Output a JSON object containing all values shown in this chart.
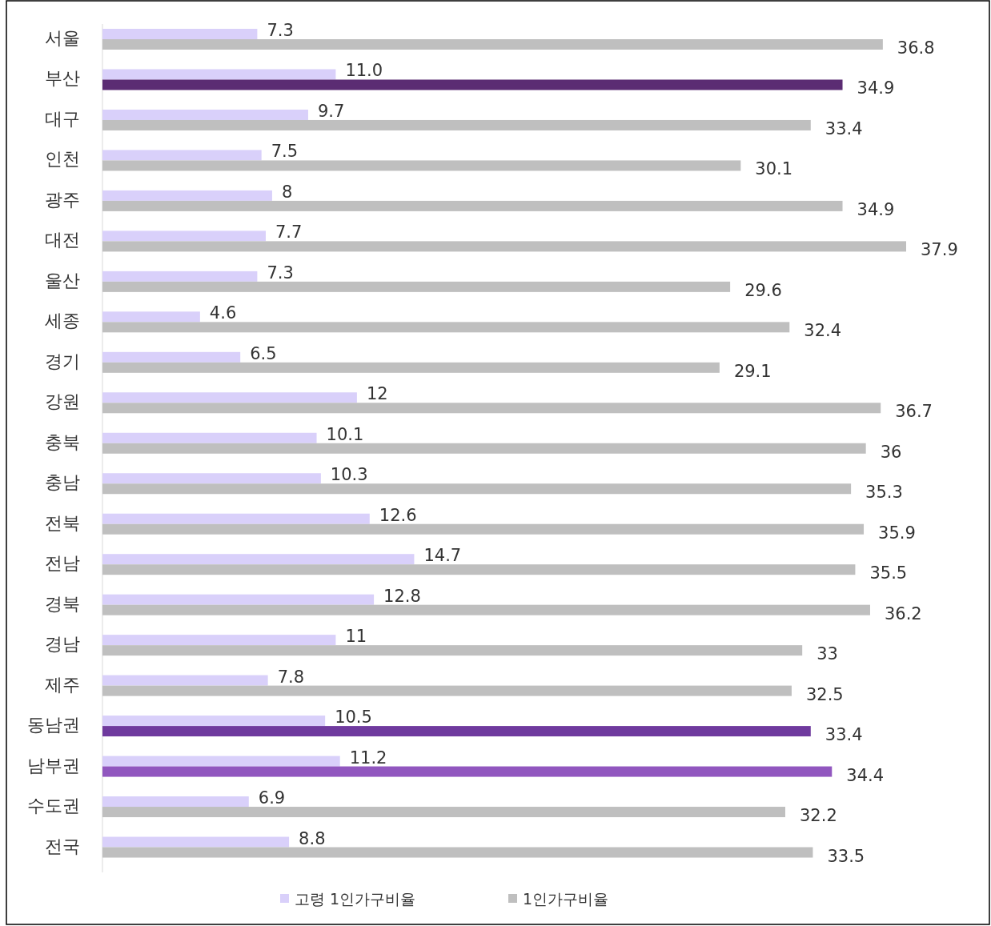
{
  "chart_data": {
    "type": "bar",
    "orientation": "horizontal",
    "legend": "bottom",
    "categories": [
      "서울",
      "부산",
      "대구",
      "인천",
      "광주",
      "대전",
      "울산",
      "세종",
      "경기",
      "강원",
      "충북",
      "충남",
      "전북",
      "전남",
      "경북",
      "경남",
      "제주",
      "동남권",
      "남부권",
      "수도권",
      "전국"
    ],
    "series": [
      {
        "name": "고령 1인가구비율",
        "color": "#d9d0fa",
        "values": [
          7.3,
          11.0,
          9.7,
          7.5,
          8,
          7.7,
          7.3,
          4.6,
          6.5,
          12,
          10.1,
          10.3,
          12.6,
          14.7,
          12.8,
          11,
          7.8,
          10.5,
          11.2,
          6.9,
          8.8
        ],
        "value_labels": [
          "7.3",
          "11.0",
          "9.7",
          "7.5",
          "8",
          "7.7",
          "7.3",
          "4.6",
          "6.5",
          "12",
          "10.1",
          "10.3",
          "12.6",
          "14.7",
          "12.8",
          "11",
          "7.8",
          "10.5",
          "11.2",
          "6.9",
          "8.8"
        ]
      },
      {
        "name": "1인가구비율",
        "color": "#bfbfbf",
        "colors": [
          "#bfbfbf",
          "#5b2c73",
          "#bfbfbf",
          "#bfbfbf",
          "#bfbfbf",
          "#bfbfbf",
          "#bfbfbf",
          "#bfbfbf",
          "#bfbfbf",
          "#bfbfbf",
          "#bfbfbf",
          "#bfbfbf",
          "#bfbfbf",
          "#bfbfbf",
          "#bfbfbf",
          "#bfbfbf",
          "#bfbfbf",
          "#6f3a9e",
          "#9157bf",
          "#bfbfbf",
          "#bfbfbf"
        ],
        "values": [
          36.8,
          34.9,
          33.4,
          30.1,
          34.9,
          37.9,
          29.6,
          32.4,
          29.1,
          36.7,
          36,
          35.3,
          35.9,
          35.5,
          36.2,
          33,
          32.5,
          33.4,
          34.4,
          32.2,
          33.5
        ],
        "value_labels": [
          "36.8",
          "34.9",
          "33.4",
          "30.1",
          "34.9",
          "37.9",
          "29.6",
          "32.4",
          "29.1",
          "36.7",
          "36",
          "35.3",
          "35.9",
          "35.5",
          "36.2",
          "33",
          "32.5",
          "33.4",
          "34.4",
          "32.2",
          "33.5"
        ]
      }
    ]
  }
}
